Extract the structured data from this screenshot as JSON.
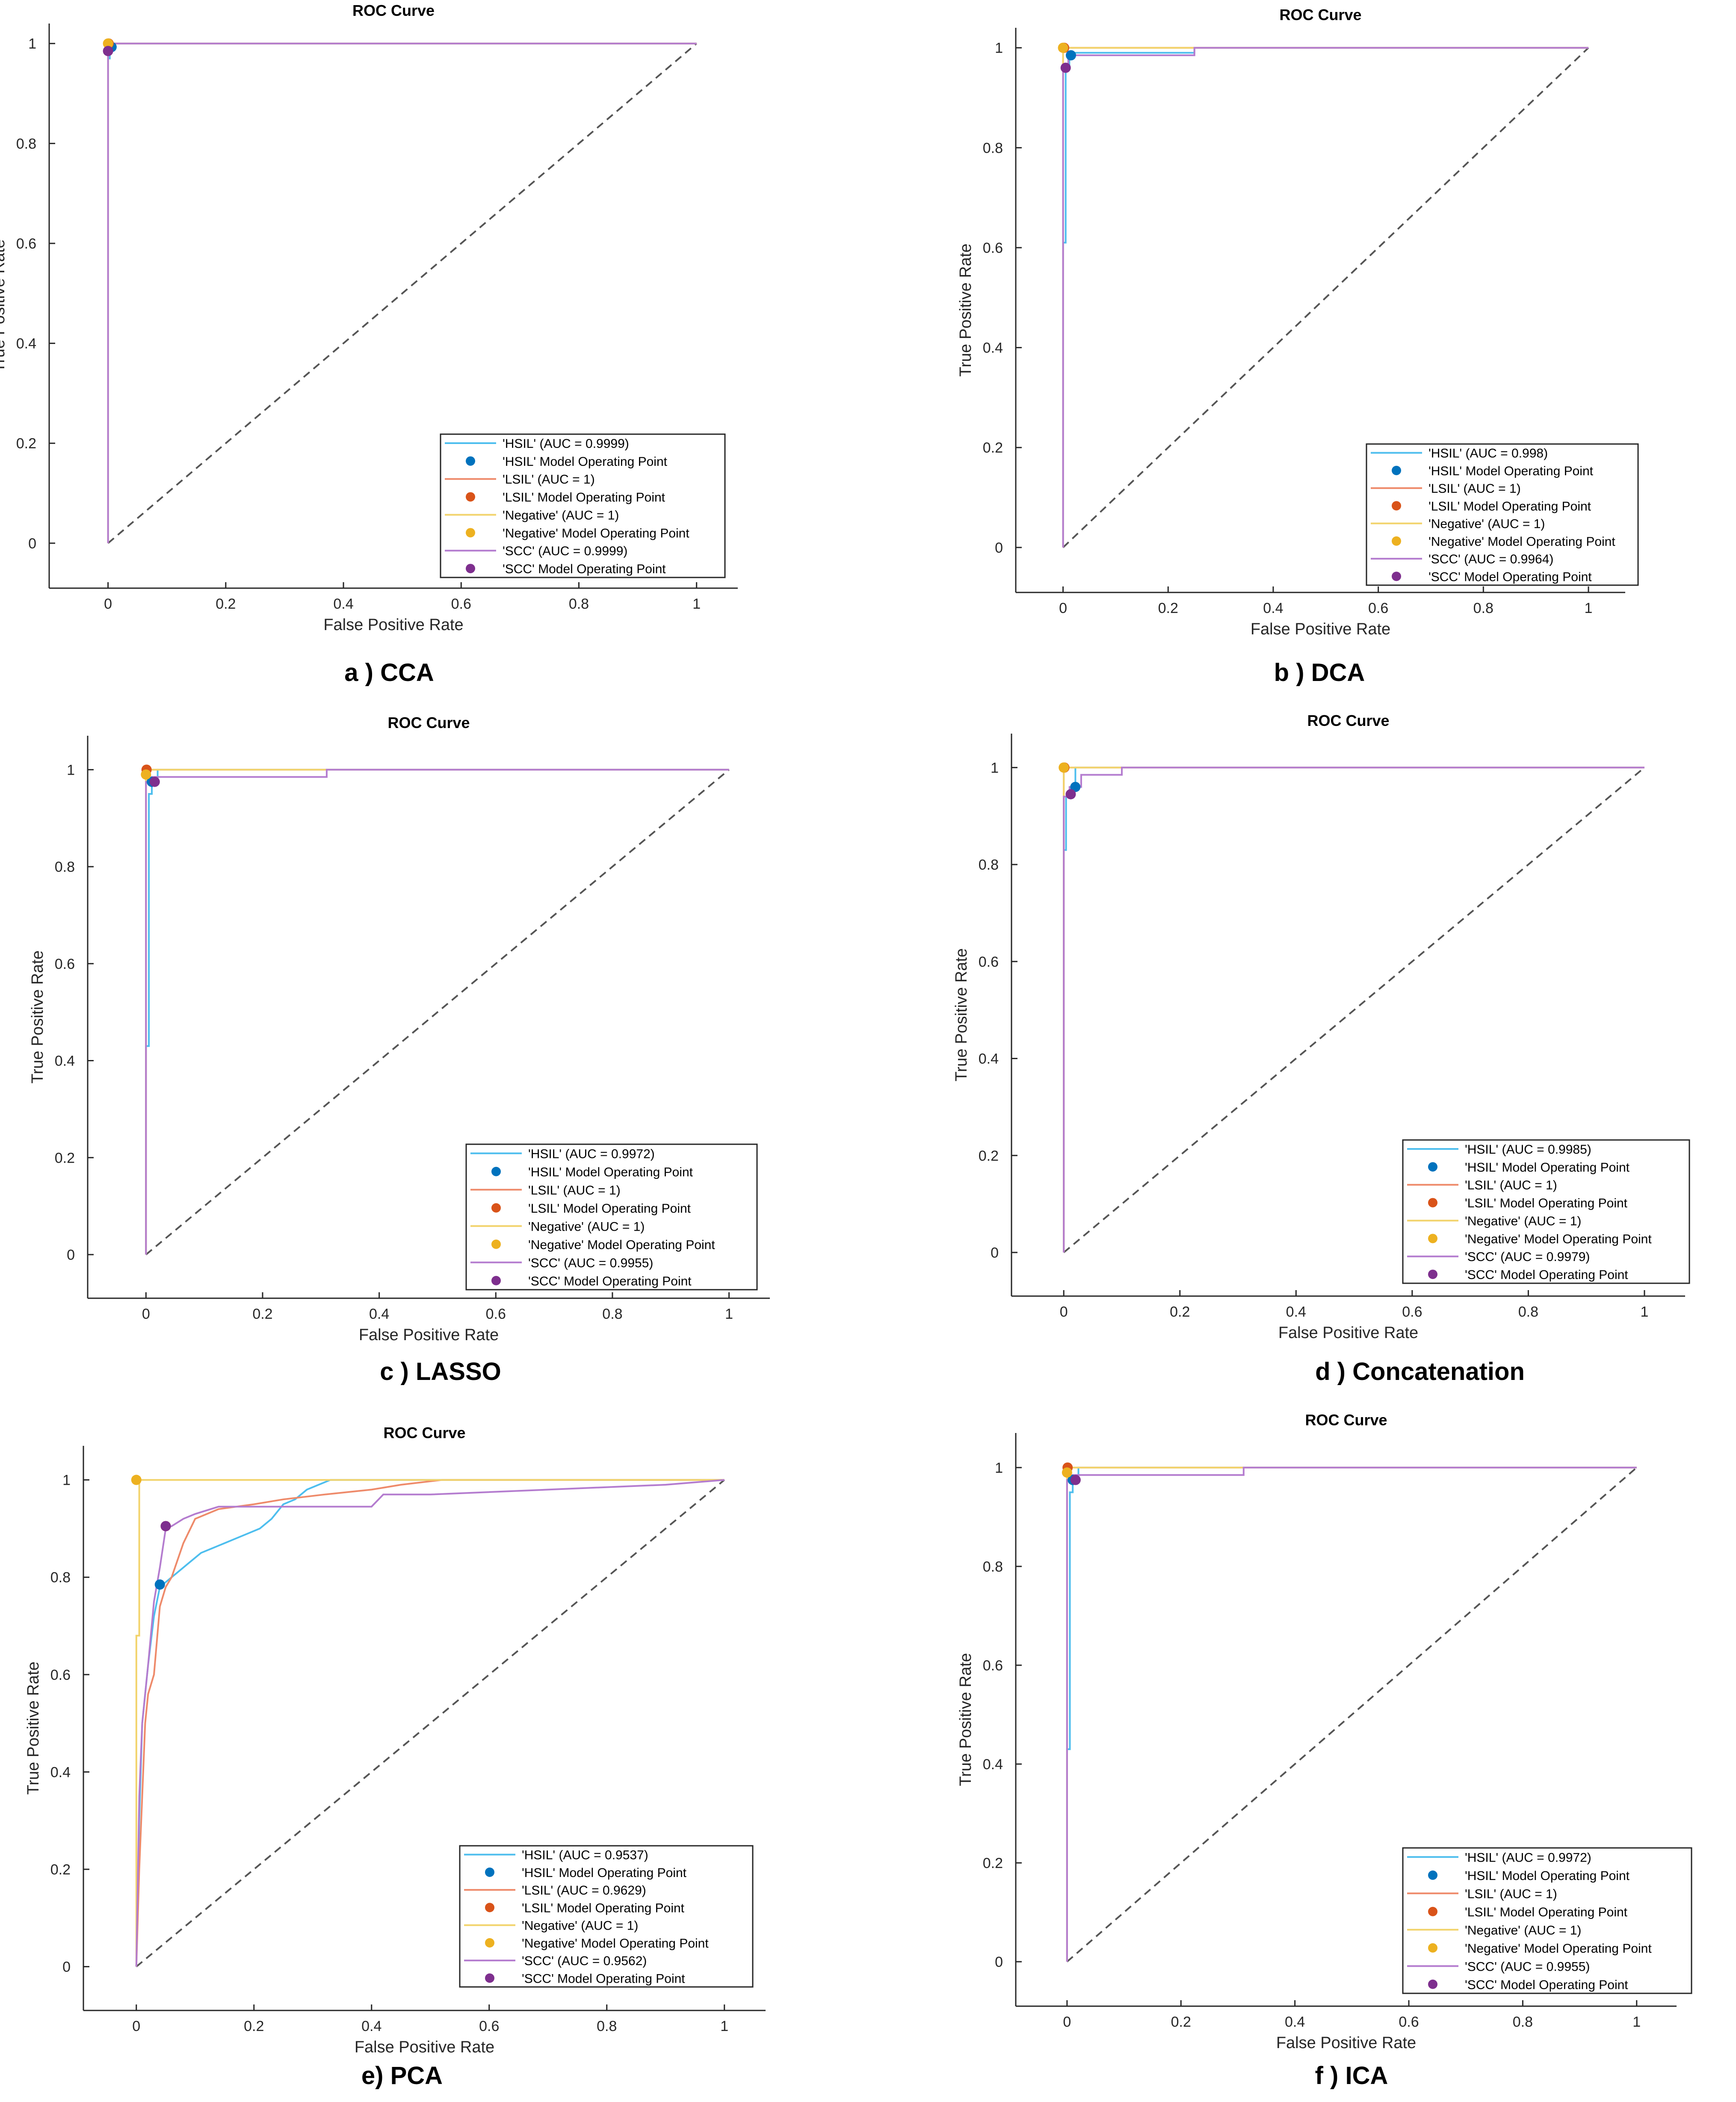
{
  "figure": {
    "captions": [
      "a ) CCA",
      "b ) DCA",
      "c ) LASSO",
      "d ) Concatenation",
      "e) PCA",
      "f ) ICA"
    ]
  },
  "colors": {
    "HSIL": "#0072BD",
    "HSIL_line": "#4DBEEE",
    "LSIL": "#D95319",
    "LSIL_line": "#EE8A6A",
    "Negative": "#EDB120",
    "Negative_line": "#F2D36B",
    "SCC": "#7E2F8E",
    "SCC_line": "#B47CCF",
    "diagonal": "#555555",
    "axis": "#262626"
  },
  "chart_data": [
    {
      "type": "line",
      "panel": "a ) CCA",
      "title": "ROC Curve",
      "xlabel": "False Positive Rate",
      "ylabel": "True Positive Rate",
      "xlim": [
        -0.1,
        1.07
      ],
      "ylim": [
        -0.09,
        1.04
      ],
      "xticks": [
        "0",
        "0.2",
        "0.4",
        "0.6",
        "0.8",
        "1"
      ],
      "yticks": [
        "0",
        "0.2",
        "0.4",
        "0.6",
        "0.8",
        "1"
      ],
      "legend_position": "bottom-right",
      "series": [
        {
          "name": "HSIL",
          "legend": "'HSIL' (AUC = 0.9999)",
          "point_legend": "'HSIL' Model Operating Point",
          "x": [
            0,
            0,
            0.003,
            0.003,
            1
          ],
          "y": [
            0,
            0.97,
            0.97,
            1,
            1
          ],
          "op": [
            0.006,
            0.993
          ]
        },
        {
          "name": "LSIL",
          "legend": "'LSIL' (AUC = 1)",
          "point_legend": "'LSIL' Model Operating Point",
          "x": [
            0,
            0,
            1
          ],
          "y": [
            0,
            1,
            1
          ],
          "op": [
            0.001,
            1.0
          ]
        },
        {
          "name": "Negative",
          "legend": "'Negative' (AUC = 1)",
          "point_legend": "'Negative' Model Operating Point",
          "x": [
            0,
            0,
            1
          ],
          "y": [
            0,
            1,
            1
          ],
          "op": [
            0,
            1.0
          ]
        },
        {
          "name": "SCC",
          "legend": "'SCC' (AUC = 0.9999)",
          "point_legend": "'SCC' Model Operating Point",
          "x": [
            0,
            0,
            0.003,
            0.003,
            1
          ],
          "y": [
            0,
            0.985,
            0.985,
            1,
            1
          ],
          "op": [
            0,
            0.985
          ]
        }
      ]
    },
    {
      "type": "line",
      "panel": "b ) DCA",
      "title": "ROC Curve",
      "xlabel": "False Positive Rate",
      "ylabel": "True Positive Rate",
      "xlim": [
        -0.09,
        1.07
      ],
      "ylim": [
        -0.09,
        1.04
      ],
      "xticks": [
        "0",
        "0.2",
        "0.4",
        "0.6",
        "0.8",
        "1"
      ],
      "yticks": [
        "0",
        "0.2",
        "0.4",
        "0.6",
        "0.8",
        "1"
      ],
      "legend_position": "bottom-right",
      "series": [
        {
          "name": "HSIL",
          "legend": "'HSIL' (AUC = 0.998)",
          "point_legend": "'HSIL' Model Operating Point",
          "x": [
            0,
            0,
            0.005,
            0.005,
            0.012,
            0.012,
            0.02,
            0.02,
            0.25,
            0.25,
            1
          ],
          "y": [
            0,
            0.61,
            0.61,
            0.96,
            0.96,
            0.98,
            0.98,
            0.99,
            0.99,
            1,
            1
          ],
          "op": [
            0.015,
            0.985
          ]
        },
        {
          "name": "LSIL",
          "legend": "'LSIL' (AUC = 1)",
          "point_legend": "'LSIL' Model Operating Point",
          "x": [
            0,
            0,
            1
          ],
          "y": [
            0,
            1,
            1
          ],
          "op": [
            0.002,
            1.0
          ]
        },
        {
          "name": "Negative",
          "legend": "'Negative' (AUC = 1)",
          "point_legend": "'Negative' Model Operating Point",
          "x": [
            0,
            0,
            1
          ],
          "y": [
            0,
            1,
            1
          ],
          "op": [
            0,
            1.0
          ]
        },
        {
          "name": "SCC",
          "legend": "'SCC' (AUC = 0.9964)",
          "point_legend": "'SCC' Model Operating Point",
          "x": [
            0,
            0,
            0.01,
            0.01,
            0.25,
            0.25,
            1
          ],
          "y": [
            0,
            0.96,
            0.96,
            0.985,
            0.985,
            1,
            1
          ],
          "op": [
            0.005,
            0.96
          ]
        }
      ]
    },
    {
      "type": "line",
      "panel": "c ) LASSO",
      "title": "ROC Curve",
      "xlabel": "False Positive Rate",
      "ylabel": "True Positive Rate",
      "xlim": [
        -0.1,
        1.07
      ],
      "ylim": [
        -0.09,
        1.07
      ],
      "xticks": [
        "0",
        "0.2",
        "0.4",
        "0.6",
        "0.8",
        "1"
      ],
      "yticks": [
        "0",
        "0.2",
        "0.4",
        "0.6",
        "0.8",
        "1"
      ],
      "legend_position": "bottom-right",
      "series": [
        {
          "name": "HSIL",
          "legend": "'HSIL' (AUC = 0.9972)",
          "point_legend": "'HSIL' Model Operating Point",
          "x": [
            0,
            0,
            0.005,
            0.005,
            0.01,
            0.01,
            0.02,
            0.02,
            1
          ],
          "y": [
            0,
            0.43,
            0.43,
            0.95,
            0.95,
            0.97,
            0.97,
            1,
            1
          ],
          "op": [
            0.01,
            0.975
          ]
        },
        {
          "name": "LSIL",
          "legend": "'LSIL' (AUC = 1)",
          "point_legend": "'LSIL' Model Operating Point",
          "x": [
            0,
            0,
            1
          ],
          "y": [
            0,
            1,
            1
          ],
          "op": [
            0.001,
            1.0
          ]
        },
        {
          "name": "Negative",
          "legend": "'Negative' (AUC = 1)",
          "point_legend": "'Negative' Model Operating Point",
          "x": [
            0,
            0,
            1
          ],
          "y": [
            0,
            1,
            1
          ],
          "op": [
            0,
            0.99
          ]
        },
        {
          "name": "SCC",
          "legend": "'SCC' (AUC = 0.9955)",
          "point_legend": "'SCC' Model Operating Point",
          "x": [
            0,
            0,
            0.01,
            0.01,
            0.31,
            0.31,
            1
          ],
          "y": [
            0,
            0.975,
            0.975,
            0.985,
            0.985,
            1,
            1
          ],
          "op": [
            0.015,
            0.975
          ]
        }
      ]
    },
    {
      "type": "line",
      "panel": "d ) Concatenation",
      "title": "ROC Curve",
      "xlabel": "False Positive Rate",
      "ylabel": "True Positive Rate",
      "xlim": [
        -0.09,
        1.07
      ],
      "ylim": [
        -0.09,
        1.07
      ],
      "xticks": [
        "0",
        "0.2",
        "0.4",
        "0.6",
        "0.8",
        "1"
      ],
      "yticks": [
        "0",
        "0.2",
        "0.4",
        "0.6",
        "0.8",
        "1"
      ],
      "legend_position": "bottom-right",
      "series": [
        {
          "name": "HSIL",
          "legend": "'HSIL' (AUC = 0.9985)",
          "point_legend": "'HSIL' Model Operating Point",
          "x": [
            0,
            0,
            0.004,
            0.004,
            0.012,
            0.012,
            0.02,
            0.02,
            1
          ],
          "y": [
            0,
            0.83,
            0.83,
            0.94,
            0.94,
            0.955,
            0.955,
            1,
            1
          ],
          "op": [
            0.02,
            0.96
          ]
        },
        {
          "name": "LSIL",
          "legend": "'LSIL' (AUC = 1)",
          "point_legend": "'LSIL' Model Operating Point",
          "x": [
            0,
            0,
            1
          ],
          "y": [
            0,
            1,
            1
          ],
          "op": [
            0.001,
            1.0
          ]
        },
        {
          "name": "Negative",
          "legend": "'Negative' (AUC = 1)",
          "point_legend": "'Negative' Model Operating Point",
          "x": [
            0,
            0,
            1
          ],
          "y": [
            0,
            1,
            1
          ],
          "op": [
            0,
            1.0
          ]
        },
        {
          "name": "SCC",
          "legend": "'SCC' (AUC = 0.9979)",
          "point_legend": "'SCC' Model Operating Point",
          "x": [
            0,
            0,
            0.01,
            0.01,
            0.03,
            0.03,
            0.1,
            0.1,
            1
          ],
          "y": [
            0,
            0.94,
            0.94,
            0.96,
            0.96,
            0.985,
            0.985,
            1,
            1
          ],
          "op": [
            0.012,
            0.945
          ]
        }
      ]
    },
    {
      "type": "line",
      "panel": "e) PCA",
      "title": "ROC Curve",
      "xlabel": "False Positive Rate",
      "ylabel": "True Positive Rate",
      "xlim": [
        -0.09,
        1.07
      ],
      "ylim": [
        -0.09,
        1.07
      ],
      "xticks": [
        "0",
        "0.2",
        "0.4",
        "0.6",
        "0.8",
        "1"
      ],
      "yticks": [
        "0",
        "0.2",
        "0.4",
        "0.6",
        "0.8",
        "1"
      ],
      "legend_position": "bottom-right",
      "series": [
        {
          "name": "HSIL",
          "legend": "'HSIL' (AUC = 0.9537)",
          "point_legend": "'HSIL' Model Operating Point",
          "x": [
            0,
            0.005,
            0.01,
            0.02,
            0.03,
            0.04,
            0.05,
            0.07,
            0.09,
            0.11,
            0.13,
            0.15,
            0.17,
            0.19,
            0.21,
            0.23,
            0.25,
            0.27,
            0.29,
            0.31,
            0.33,
            1
          ],
          "y": [
            0,
            0.3,
            0.5,
            0.62,
            0.72,
            0.78,
            0.79,
            0.81,
            0.83,
            0.85,
            0.86,
            0.87,
            0.88,
            0.89,
            0.9,
            0.92,
            0.95,
            0.96,
            0.98,
            0.99,
            1,
            1
          ],
          "op": [
            0.04,
            0.785
          ]
        },
        {
          "name": "LSIL",
          "legend": "'LSIL' (AUC = 0.9629)",
          "point_legend": "'LSIL' Model Operating Point",
          "x": [
            0,
            0.005,
            0.01,
            0.015,
            0.02,
            0.03,
            0.04,
            0.05,
            0.06,
            0.08,
            0.1,
            0.14,
            0.2,
            0.25,
            0.32,
            0.4,
            0.45,
            0.52,
            1
          ],
          "y": [
            0,
            0.2,
            0.35,
            0.5,
            0.56,
            0.6,
            0.74,
            0.78,
            0.8,
            0.87,
            0.92,
            0.94,
            0.95,
            0.96,
            0.97,
            0.98,
            0.99,
            1,
            1
          ],
          "op": [
            0.05,
            0.905
          ]
        },
        {
          "name": "Negative",
          "legend": "'Negative' (AUC = 1)",
          "point_legend": "'Negative' Model Operating Point",
          "x": [
            0,
            0,
            0.005,
            0.005,
            1
          ],
          "y": [
            0,
            0.68,
            0.68,
            1,
            1
          ],
          "op": [
            0,
            1.0
          ]
        },
        {
          "name": "SCC",
          "legend": "'SCC' (AUC = 0.9562)",
          "point_legend": "'SCC' Model Operating Point",
          "x": [
            0,
            0.005,
            0.01,
            0.02,
            0.03,
            0.04,
            0.05,
            0.06,
            0.08,
            0.1,
            0.14,
            0.2,
            0.3,
            0.4,
            0.42,
            0.5,
            0.7,
            0.9,
            1
          ],
          "y": [
            0,
            0.35,
            0.5,
            0.62,
            0.75,
            0.82,
            0.9,
            0.905,
            0.92,
            0.93,
            0.945,
            0.945,
            0.945,
            0.945,
            0.97,
            0.97,
            0.98,
            0.99,
            1
          ],
          "op": [
            0.05,
            0.905
          ]
        }
      ]
    },
    {
      "type": "line",
      "panel": "f ) ICA",
      "title": "ROC Curve",
      "xlabel": "False Positive Rate",
      "ylabel": "True Positive Rate",
      "xlim": [
        -0.09,
        1.07
      ],
      "ylim": [
        -0.09,
        1.07
      ],
      "xticks": [
        "0",
        "0.2",
        "0.4",
        "0.6",
        "0.8",
        "1"
      ],
      "yticks": [
        "0",
        "0.2",
        "0.4",
        "0.6",
        "0.8",
        "1"
      ],
      "legend_position": "bottom-right",
      "series": [
        {
          "name": "HSIL",
          "legend": "'HSIL' (AUC = 0.9972)",
          "point_legend": "'HSIL' Model Operating Point",
          "x": [
            0,
            0,
            0.005,
            0.005,
            0.01,
            0.01,
            0.02,
            0.02,
            1
          ],
          "y": [
            0,
            0.43,
            0.43,
            0.95,
            0.95,
            0.97,
            0.97,
            1,
            1
          ],
          "op": [
            0.01,
            0.975
          ]
        },
        {
          "name": "LSIL",
          "legend": "'LSIL' (AUC = 1)",
          "point_legend": "'LSIL' Model Operating Point",
          "x": [
            0,
            0,
            1
          ],
          "y": [
            0,
            1,
            1
          ],
          "op": [
            0.001,
            1.0
          ]
        },
        {
          "name": "Negative",
          "legend": "'Negative' (AUC = 1)",
          "point_legend": "'Negative' Model Operating Point",
          "x": [
            0,
            0,
            1
          ],
          "y": [
            0,
            1,
            1
          ],
          "op": [
            0,
            0.99
          ]
        },
        {
          "name": "SCC",
          "legend": "'SCC' (AUC = 0.9955)",
          "point_legend": "'SCC' Model Operating Point",
          "x": [
            0,
            0,
            0.01,
            0.01,
            0.31,
            0.31,
            1
          ],
          "y": [
            0,
            0.975,
            0.975,
            0.985,
            0.985,
            1,
            1
          ],
          "op": [
            0.015,
            0.975
          ]
        }
      ]
    }
  ]
}
